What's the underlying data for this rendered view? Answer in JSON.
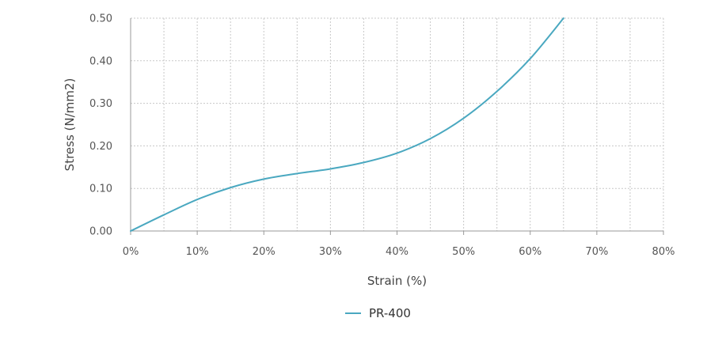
{
  "chart_data": {
    "type": "line",
    "title": "",
    "xlabel": "Strain (%)",
    "ylabel": "Stress (N/mm2)",
    "xlim": [
      0,
      80
    ],
    "ylim": [
      0,
      0.5
    ],
    "xticks": [
      0,
      10,
      20,
      30,
      40,
      50,
      60,
      70,
      80
    ],
    "xtick_labels": [
      "0%",
      "10%",
      "20%",
      "30%",
      "40%",
      "50%",
      "60%",
      "70%",
      "80%"
    ],
    "yticks": [
      0,
      0.1,
      0.2,
      0.3,
      0.4,
      0.5
    ],
    "ytick_labels": [
      "0.00",
      "0.10",
      "0.20",
      "0.30",
      "0.40",
      "0.50"
    ],
    "grid": true,
    "legend_position": "bottom-center",
    "series": [
      {
        "name": "PR-400",
        "color": "#4aa8c0",
        "x": [
          0,
          5,
          10,
          15,
          20,
          25,
          30,
          35,
          40,
          45,
          50,
          55,
          60,
          65
        ],
        "y": [
          0,
          0.038,
          0.074,
          0.102,
          0.122,
          0.135,
          0.146,
          0.161,
          0.183,
          0.217,
          0.265,
          0.328,
          0.405,
          0.5
        ]
      }
    ]
  }
}
